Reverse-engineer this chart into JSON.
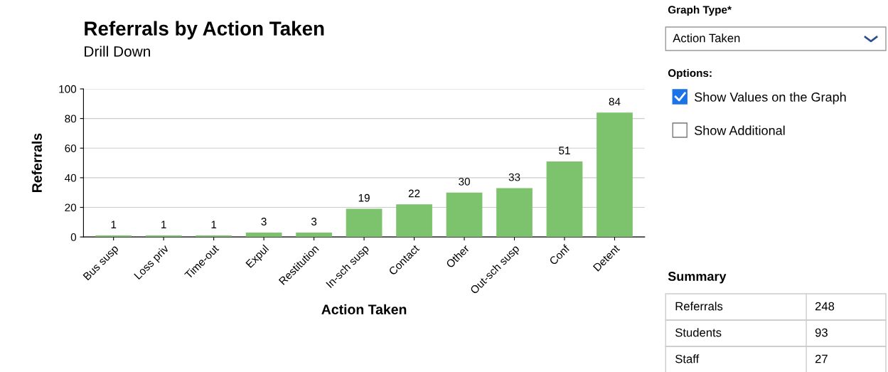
{
  "chart_data": [
    {
      "type": "bar",
      "title": "Referrals by Action Taken",
      "subtitle": "Drill Down",
      "xlabel": "Action Taken",
      "ylabel": "Referrals",
      "categories": [
        "Bus susp",
        "Loss priv",
        "Time-out",
        "Expul",
        "Restitution",
        "In-sch susp",
        "Contact",
        "Other",
        "Out-sch susp",
        "Conf",
        "Detent"
      ],
      "values": [
        1,
        1,
        1,
        3,
        3,
        19,
        22,
        30,
        33,
        51,
        84
      ],
      "color": "#7dc36d",
      "ylim": [
        0,
        100
      ],
      "yticks": [
        0,
        20,
        40,
        60,
        80,
        100
      ],
      "grid": "y",
      "data_labels": true
    },
    {
      "type": "other",
      "annotations": [
        "Graph Type*",
        "Action Taken",
        "Options:",
        "Show Values on the Graph",
        "Show Additional",
        "Summary",
        "Referrals",
        "248",
        "Students",
        "93",
        "Staff",
        "27"
      ]
    }
  ]
}
